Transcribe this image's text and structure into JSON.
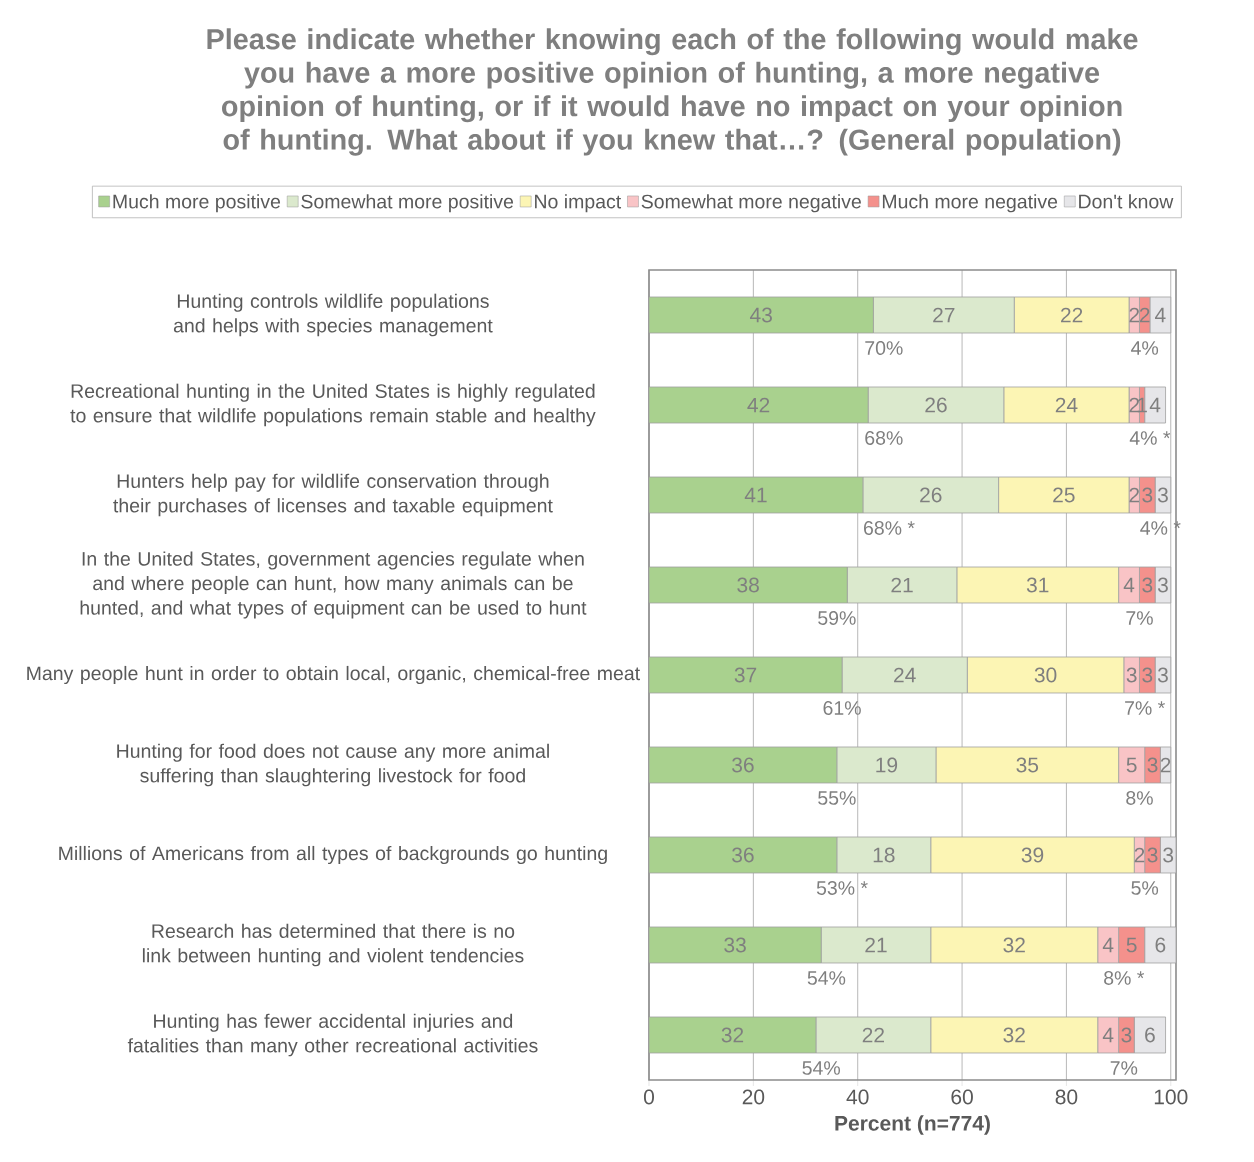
{
  "chart_data": {
    "type": "bar",
    "orientation": "horizontal",
    "stacked": true,
    "title": "Please indicate whether knowing each of the following would make you have a more positive opinion of hunting, a more negative opinion of hunting, or if it would have no impact on your opinion of hunting. What about if you knew that…? (General population)",
    "xlabel": "Percent (n=774)",
    "categories": [
      "Hunting controls wildlife populations and helps with species management",
      "Recreational hunting in the United States is highly regulated to ensure that wildlife populations remain stable and healthy",
      "Hunters help pay for wildlife conservation through their purchases of licenses and taxable equipment",
      "In the United States, government agencies regulate when and where people can hunt, how many animals can be hunted, and what types of equipment can be used to hunt",
      "Many people hunt in order to obtain local, organic, chemical-free meat",
      "Hunting for food does not cause any more animal suffering than slaughtering livestock for food",
      "Millions of Americans from all types of backgrounds go hunting",
      "Research has determined that there is no link between hunting and violent tendencies",
      "Hunting has fewer accidental injuries and fatalities than many other recreational activities"
    ],
    "series": [
      {
        "name": "Much more positive",
        "color": "#a9d18e",
        "values": [
          43,
          42,
          41,
          38,
          37,
          36,
          36,
          33,
          32
        ]
      },
      {
        "name": "Somewhat more positive",
        "color": "#dbe9cd",
        "values": [
          27,
          26,
          26,
          21,
          24,
          19,
          18,
          21,
          22
        ]
      },
      {
        "name": "No impact",
        "color": "#fcf5b4",
        "values": [
          22,
          24,
          25,
          31,
          30,
          35,
          39,
          32,
          32
        ]
      },
      {
        "name": "Somewhat more negative",
        "color": "#f9c4c6",
        "values": [
          2,
          2,
          2,
          4,
          3,
          5,
          2,
          4,
          4
        ]
      },
      {
        "name": "Much more negative",
        "color": "#f4918c",
        "values": [
          2,
          1,
          3,
          3,
          3,
          3,
          3,
          5,
          3
        ]
      },
      {
        "name": "Don't know",
        "color": "#e6e6e9",
        "values": [
          4,
          4,
          3,
          3,
          3,
          2,
          3,
          6,
          6
        ]
      }
    ],
    "xlim": [
      0,
      101
    ],
    "xticks": [
      0,
      20,
      40,
      60,
      80,
      100
    ],
    "grid": "x",
    "legend": "top",
    "data_labels": true,
    "annotations": [
      "70%",
      "4%",
      "68%",
      "4% *",
      "68% *",
      "4% *",
      "59%",
      "7%",
      "61%",
      "7% *",
      "55%",
      "8%",
      "53% *",
      "5%",
      "54%",
      "8% *",
      "54%",
      "7%"
    ]
  }
}
